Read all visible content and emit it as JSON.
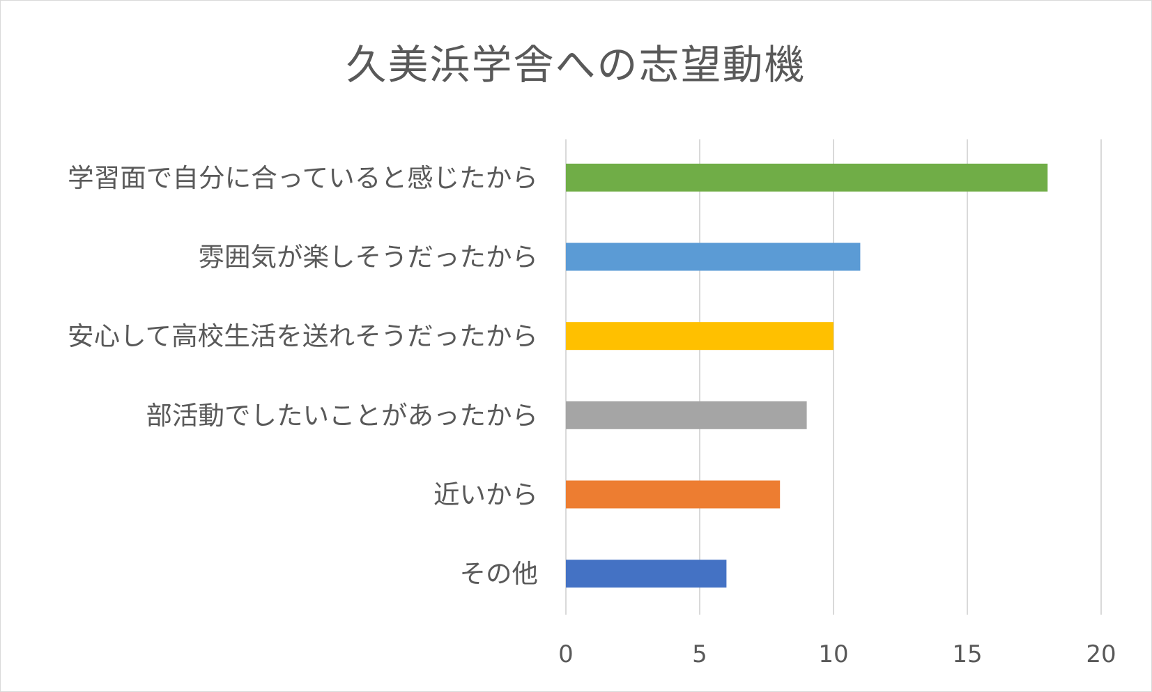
{
  "chart_data": {
    "type": "bar",
    "orientation": "horizontal",
    "title": "久美浜学舎への志望動機",
    "categories": [
      "学習面で自分に合っていると感じたから",
      "雰囲気が楽しそうだったから",
      "安心して高校生活を送れそうだったから",
      "部活動でしたいことがあったから",
      "近いから",
      "その他"
    ],
    "values": [
      18,
      11,
      10,
      9,
      8,
      6
    ],
    "colors": [
      "#70ad47",
      "#5b9bd5",
      "#ffc000",
      "#a5a5a5",
      "#ed7d31",
      "#4472c4"
    ],
    "xlim": [
      0,
      20
    ],
    "xticks": [
      0,
      5,
      10,
      15,
      20
    ],
    "grid": true,
    "legend": "none"
  }
}
